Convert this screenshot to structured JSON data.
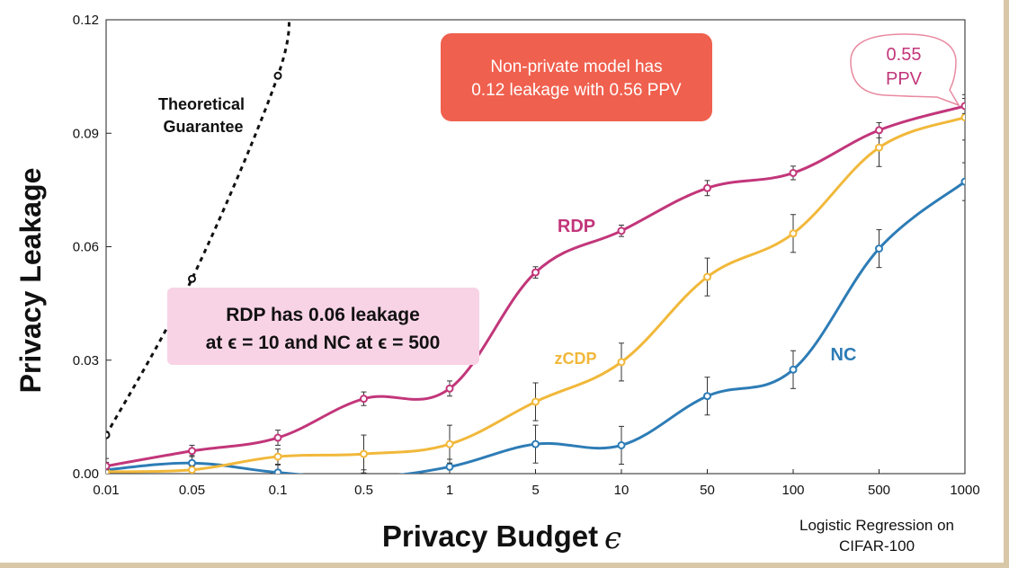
{
  "chart_data": {
    "type": "line",
    "xlabel": "Privacy Budget",
    "xlabel_symbol": "ϵ",
    "ylabel": "Privacy Leakage",
    "x_ticks": [
      "0.01",
      "0.05",
      "0.1",
      "0.5",
      "1",
      "5",
      "10",
      "50",
      "100",
      "500",
      "1000"
    ],
    "y_ticks": [
      "0.00",
      "0.03",
      "0.06",
      "0.09",
      "0.12"
    ],
    "ylim": [
      0,
      0.12
    ],
    "x_scale": "log (categorical positions)",
    "grid": false,
    "caption": "Logistic Regression on CIFAR-100",
    "series": [
      {
        "name": "RDP",
        "color": "#c2367a",
        "values": [
          0.002,
          0.006,
          0.0095,
          0.0198,
          0.0225,
          0.0532,
          0.0642,
          0.0755,
          0.0795,
          0.0908,
          0.0972
        ],
        "errors": [
          0.001,
          0.0015,
          0.002,
          0.0018,
          0.002,
          0.0015,
          0.0015,
          0.002,
          0.0018,
          0.002,
          0.002
        ]
      },
      {
        "name": "zCDP",
        "color": "#f1b83a",
        "values": [
          0.0005,
          0.001,
          0.0045,
          0.0052,
          0.0078,
          0.019,
          0.0295,
          0.052,
          0.0635,
          0.0862,
          0.0942
        ],
        "errors": [
          0.0005,
          0.001,
          0.002,
          0.005,
          0.005,
          0.005,
          0.005,
          0.005,
          0.005,
          0.005,
          0.006
        ]
      },
      {
        "name": "NC",
        "color": "#2d7cb6",
        "values": [
          0.001,
          0.0028,
          0.0003,
          -0.001,
          0.0018,
          0.0078,
          0.0075,
          0.0205,
          0.0275,
          0.0595,
          0.0772
        ],
        "errors": [
          0.003,
          0.002,
          0.002,
          0.002,
          0.002,
          0.005,
          0.005,
          0.005,
          0.005,
          0.005,
          0.005
        ]
      },
      {
        "name": "Theoretical Guarantee",
        "color": "#111111",
        "style": "dotted",
        "x_index": [
          0,
          1,
          2
        ],
        "values": [
          0.0102,
          0.0515,
          0.1052
        ]
      }
    ],
    "annotations": {
      "theory_line1": "Theoretical",
      "theory_line2": "Guarantee",
      "red_box_line1": "Non-private model has",
      "red_box_line2": "0.12 leakage with 0.56 PPV",
      "pink_box_line1": "RDP has 0.06 leakage",
      "pink_box_line2": "at ϵ = 10 and NC at ϵ = 500",
      "bubble_line1": "0.55",
      "bubble_line2": "PPV",
      "caption_line1": "Logistic Regression on",
      "caption_line2": "CIFAR-100"
    },
    "colors": {
      "red_box": "#f0604e",
      "pink_box": "#f8d3e6",
      "bubble_text": "#c2367a",
      "bubble_border": "#e88aa0"
    }
  }
}
